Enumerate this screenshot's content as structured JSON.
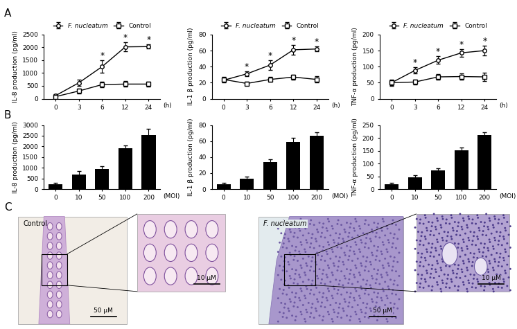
{
  "panel_labels": [
    "A",
    "B",
    "C"
  ],
  "chart_data": [
    {
      "type": "line",
      "y_label": "IL-8 production (pg/ml)",
      "x_label": "(h)",
      "categories": [
        "0",
        "3",
        "6",
        "12",
        "24"
      ],
      "ylim": [
        0,
        2500
      ],
      "yticks": [
        0,
        500,
        1000,
        1500,
        2000,
        2500
      ],
      "legend": "upper center",
      "series": [
        {
          "name": "F. nucleatum",
          "color": "#000000",
          "marker": "circle",
          "values": [
            120,
            620,
            1250,
            2020,
            2030
          ],
          "errors": [
            60,
            120,
            250,
            180,
            80
          ],
          "significance": [
            null,
            null,
            "*",
            "*",
            "*"
          ]
        },
        {
          "name": "Control",
          "color": "#000000",
          "marker": "square",
          "values": [
            80,
            300,
            550,
            570,
            570
          ],
          "errors": [
            40,
            100,
            100,
            110,
            100
          ]
        }
      ]
    },
    {
      "type": "line",
      "y_label": "IL-1 β production (pg/ml)",
      "x_label": "(h)",
      "categories": [
        "0",
        "3",
        "6",
        "12",
        "24"
      ],
      "ylim": [
        0,
        80
      ],
      "yticks": [
        0,
        20,
        40,
        60,
        80
      ],
      "legend": "upper center",
      "series": [
        {
          "name": "F. nucleatum",
          "color": "#000000",
          "marker": "circle",
          "values": [
            23,
            31,
            42,
            61,
            62
          ],
          "errors": [
            3,
            3,
            6,
            6,
            3
          ],
          "significance": [
            null,
            "*",
            "*",
            "*",
            "*"
          ]
        },
        {
          "name": "Control",
          "color": "#000000",
          "marker": "square",
          "values": [
            24,
            19,
            24,
            27,
            24
          ],
          "errors": [
            3,
            2,
            3,
            3,
            4
          ]
        }
      ]
    },
    {
      "type": "line",
      "y_label": "TNF-α production (pg/ml)",
      "x_label": "(h)",
      "categories": [
        "0",
        "3",
        "6",
        "12",
        "24"
      ],
      "ylim": [
        0,
        200
      ],
      "yticks": [
        0,
        50,
        100,
        150,
        200
      ],
      "legend": "upper center",
      "series": [
        {
          "name": "F. nucleatum",
          "color": "#000000",
          "marker": "circle",
          "values": [
            50,
            88,
            120,
            143,
            150
          ],
          "errors": [
            10,
            10,
            12,
            12,
            15
          ],
          "significance": [
            null,
            "*",
            "*",
            "*",
            "*"
          ]
        },
        {
          "name": "Control",
          "color": "#000000",
          "marker": "square",
          "values": [
            50,
            52,
            68,
            69,
            68
          ],
          "errors": [
            8,
            8,
            8,
            10,
            12
          ]
        }
      ]
    },
    {
      "type": "bar",
      "y_label": "IL-8 production (pg/ml)",
      "x_label": "(MOI)",
      "categories": [
        "0",
        "10",
        "50",
        "100",
        "200"
      ],
      "color": "#000000",
      "ylim": [
        0,
        3000
      ],
      "yticks": [
        0,
        500,
        1000,
        1500,
        2000,
        2500,
        3000
      ],
      "values": [
        230,
        680,
        950,
        1900,
        2530
      ],
      "errors": [
        50,
        150,
        110,
        150,
        300
      ]
    },
    {
      "type": "bar",
      "y_label": "IL-1 β production (pg/ml)",
      "x_label": "(MOI)",
      "categories": [
        "0",
        "10",
        "50",
        "100",
        "200"
      ],
      "color": "#000000",
      "ylim": [
        0,
        80
      ],
      "yticks": [
        0,
        20,
        40,
        60,
        80
      ],
      "values": [
        6,
        13,
        34,
        59,
        67
      ],
      "errors": [
        1.5,
        3,
        3.5,
        5,
        4
      ]
    },
    {
      "type": "bar",
      "y_label": "TNF-α production (pg/ml)",
      "x_label": "(MOI)",
      "categories": [
        "0",
        "10",
        "50",
        "100",
        "200"
      ],
      "color": "#000000",
      "ylim": [
        0,
        250
      ],
      "yticks": [
        0,
        50,
        100,
        150,
        200,
        250
      ],
      "values": [
        20,
        45,
        73,
        152,
        211
      ],
      "errors": [
        4,
        9,
        8,
        10,
        10
      ]
    }
  ],
  "micrographs": [
    {
      "label": "Control",
      "scale_bar": "50 μM",
      "inset_scale_bar": "10 μM"
    },
    {
      "label": "F. nucleatum",
      "scale_bar": "50 μM",
      "inset_scale_bar": "10 μM"
    }
  ]
}
